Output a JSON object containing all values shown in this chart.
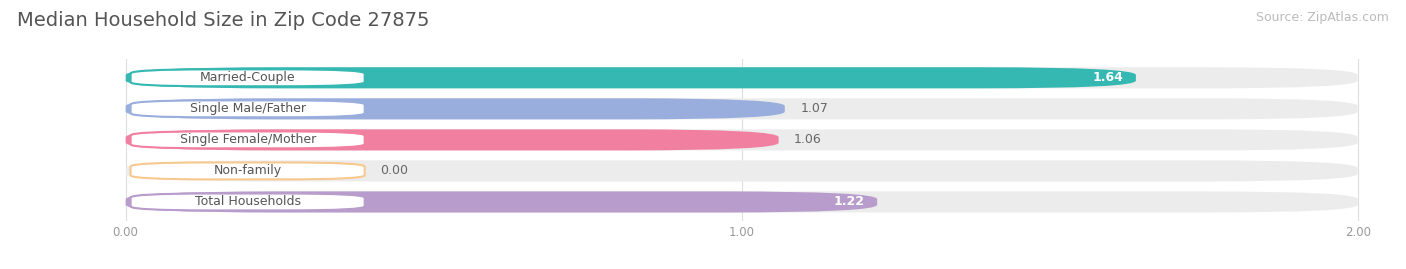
{
  "title": "Median Household Size in Zip Code 27875",
  "source": "Source: ZipAtlas.com",
  "categories": [
    "Married-Couple",
    "Single Male/Father",
    "Single Female/Mother",
    "Non-family",
    "Total Households"
  ],
  "values": [
    1.64,
    1.07,
    1.06,
    0.0,
    1.22
  ],
  "bar_colors": [
    "#35b8b2",
    "#9aaedd",
    "#f07fa0",
    "#f7c98e",
    "#b89ccc"
  ],
  "xlim_max": 2.0,
  "xticks": [
    0.0,
    1.0,
    2.0
  ],
  "xtick_labels": [
    "0.00",
    "1.00",
    "2.00"
  ],
  "background_color": "#ffffff",
  "bar_bg_color": "#ececec",
  "title_fontsize": 14,
  "source_fontsize": 9,
  "bar_label_fontsize": 9,
  "category_fontsize": 9,
  "value_label_colors": [
    "#ffffff",
    "#666666",
    "#666666",
    "#666666",
    "#ffffff"
  ]
}
